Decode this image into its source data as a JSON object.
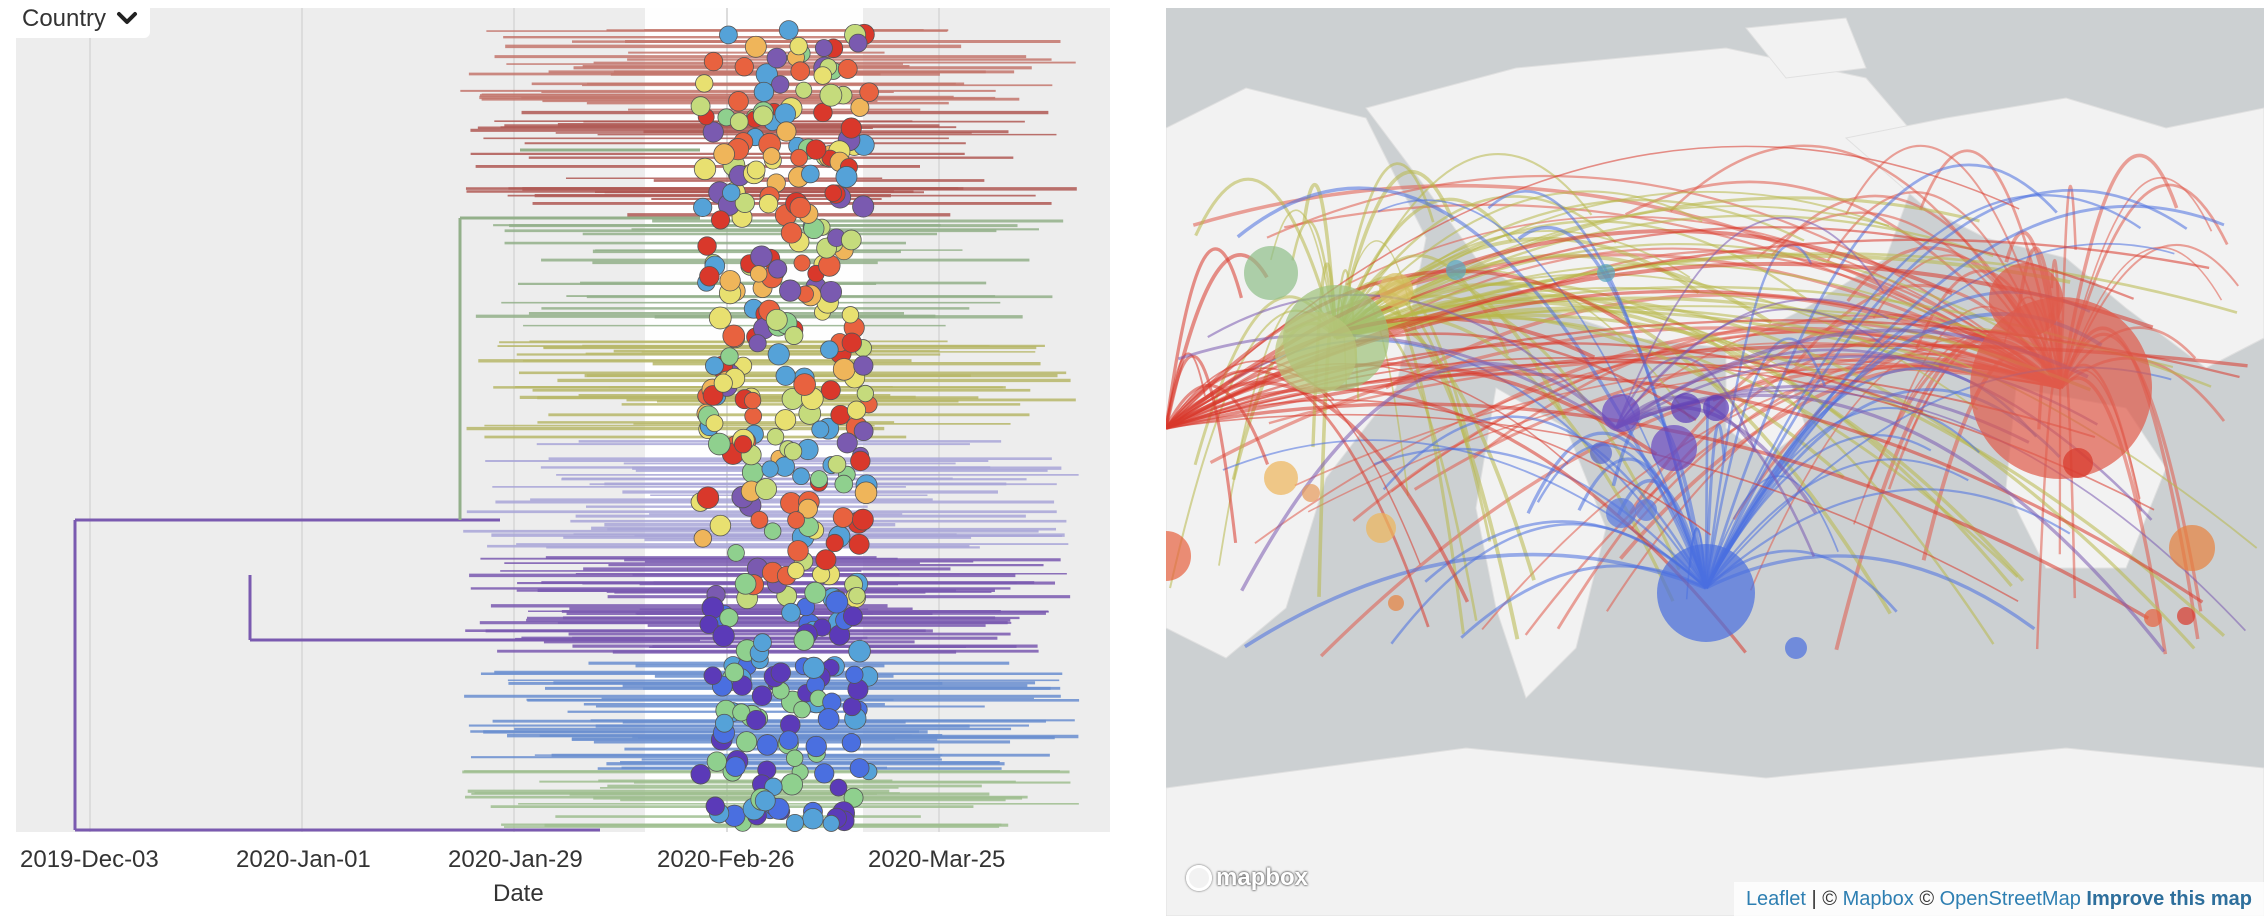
{
  "tree_panel": {
    "color_by_label": "Country",
    "axis": {
      "title": "Date",
      "ticks": [
        "2019-Dec-03",
        "2020-Jan-01",
        "2020-Jan-29",
        "2020-Feb-26",
        "2020-Mar-25"
      ]
    }
  },
  "map_panel": {
    "logo_text": "mapbox",
    "attribution": {
      "leaflet": "Leaflet",
      "sep1": " | © ",
      "mapbox": "Mapbox",
      "sep2": " © ",
      "osm": "OpenStreetMap",
      "improve": "Improve this map"
    }
  },
  "colors": {
    "panel_bg": "#ededed",
    "map_water": "#ccd0d2",
    "map_land": "#f2f2f2",
    "link": "#2e7fb2",
    "palette": [
      "#5b3ab8",
      "#4a6fe0",
      "#55a2d8",
      "#8fd08e",
      "#c5db7c",
      "#e8e070",
      "#efb55a",
      "#e8623f",
      "#d9382b",
      "#7a5ab0",
      "#b8b86a"
    ]
  }
}
